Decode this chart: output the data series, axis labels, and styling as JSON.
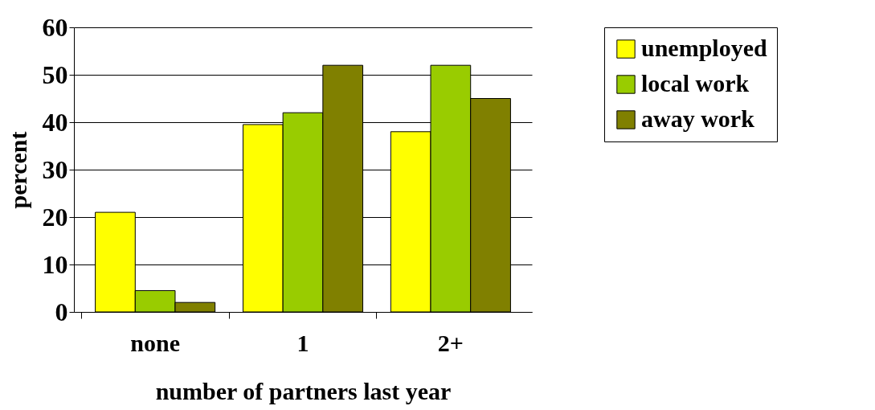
{
  "chart_data": {
    "type": "bar",
    "xlabel": "number of partners last year",
    "ylabel": "percent",
    "categories": [
      "none",
      "1",
      "2+"
    ],
    "series": [
      {
        "name": "unemployed",
        "color": "#ffff00",
        "values": [
          21,
          39.5,
          38
        ]
      },
      {
        "name": "local work",
        "color": "#99cc00",
        "values": [
          4.5,
          42,
          52
        ]
      },
      {
        "name": "away work",
        "color": "#808000",
        "values": [
          2,
          52,
          45
        ]
      }
    ],
    "ylim": [
      0,
      60
    ],
    "yticks": [
      0,
      10,
      20,
      30,
      40,
      50,
      60
    ],
    "grid": "y",
    "legend": "right"
  }
}
